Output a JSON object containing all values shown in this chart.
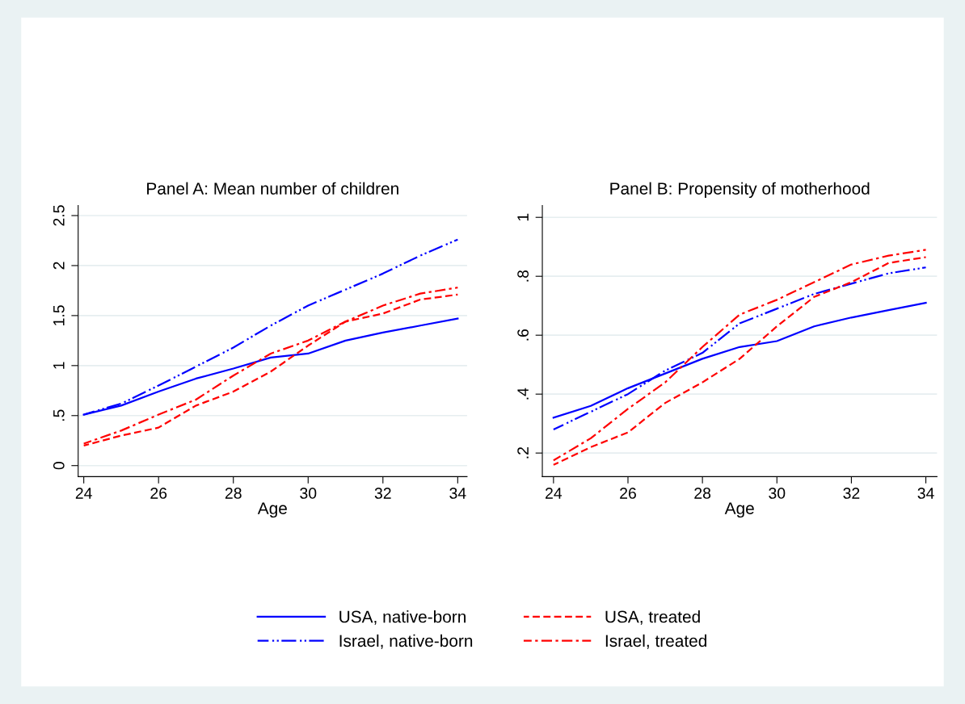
{
  "chart_data": [
    {
      "type": "line",
      "title": "Panel A: Mean number of children",
      "xlabel": "Age",
      "x": [
        24,
        25,
        26,
        27,
        28,
        29,
        30,
        31,
        32,
        33,
        34
      ],
      "xlim": [
        23.85,
        34.25
      ],
      "xticks": [
        24,
        26,
        28,
        30,
        32,
        34
      ],
      "ylim": [
        -0.11,
        2.6
      ],
      "yticks": [
        0,
        {
          "value": 0.5,
          "label": ".5"
        },
        1,
        {
          "value": 1.5,
          "label": "1.5"
        },
        2,
        {
          "value": 2.5,
          "label": "2.5"
        }
      ],
      "grid": "y",
      "legend": "bottom",
      "series": [
        {
          "name": "USA, native-born",
          "color": "#0000ff",
          "line_style": "solid",
          "values": [
            0.51,
            0.6,
            0.74,
            0.87,
            0.97,
            1.08,
            1.12,
            1.25,
            1.33,
            1.4,
            1.47
          ]
        },
        {
          "name": "Israel, native-born",
          "color": "#0000ff",
          "line_style": "longdash_dot",
          "values": [
            0.51,
            0.62,
            0.8,
            0.99,
            1.18,
            1.4,
            1.6,
            1.76,
            1.92,
            2.1,
            2.26
          ]
        },
        {
          "name": "USA, treated",
          "color": "#ff0000",
          "line_style": "dashed",
          "values": [
            0.2,
            0.3,
            0.38,
            0.6,
            0.74,
            0.94,
            1.2,
            1.44,
            1.52,
            1.66,
            1.71
          ]
        },
        {
          "name": "Israel, treated",
          "color": "#ff0000",
          "line_style": "dashdot",
          "values": [
            0.22,
            0.35,
            0.51,
            0.66,
            0.9,
            1.12,
            1.25,
            1.44,
            1.6,
            1.72,
            1.78
          ]
        }
      ]
    },
    {
      "type": "line",
      "title": "Panel B: Propensity of motherhood",
      "xlabel": "Age",
      "x": [
        24,
        25,
        26,
        27,
        28,
        29,
        30,
        31,
        32,
        33,
        34
      ],
      "xlim": [
        23.7,
        34.3
      ],
      "xticks": [
        24,
        26,
        28,
        30,
        32,
        34
      ],
      "ylim": [
        0.12,
        1.04
      ],
      "yticks": [
        {
          "value": 0.2,
          "label": ".2"
        },
        {
          "value": 0.4,
          "label": ".4"
        },
        {
          "value": 0.6,
          "label": ".6"
        },
        {
          "value": 0.8,
          "label": ".8"
        },
        1
      ],
      "grid": "y",
      "series": [
        {
          "color": "#0000ff",
          "line_style": "solid",
          "values": [
            0.32,
            0.36,
            0.42,
            0.47,
            0.52,
            0.56,
            0.58,
            0.63,
            0.66,
            0.685,
            0.71
          ]
        },
        {
          "color": "#0000ff",
          "line_style": "longdash_dot",
          "values": [
            0.28,
            0.34,
            0.4,
            0.48,
            0.54,
            0.64,
            0.69,
            0.74,
            0.775,
            0.81,
            0.83
          ]
        },
        {
          "color": "#ff0000",
          "line_style": "dashed",
          "values": [
            0.16,
            0.22,
            0.27,
            0.37,
            0.44,
            0.52,
            0.63,
            0.73,
            0.78,
            0.845,
            0.865
          ]
        },
        {
          "color": "#ff0000",
          "line_style": "dashdot",
          "values": [
            0.175,
            0.25,
            0.35,
            0.44,
            0.56,
            0.67,
            0.72,
            0.78,
            0.84,
            0.87,
            0.89
          ]
        }
      ]
    }
  ]
}
